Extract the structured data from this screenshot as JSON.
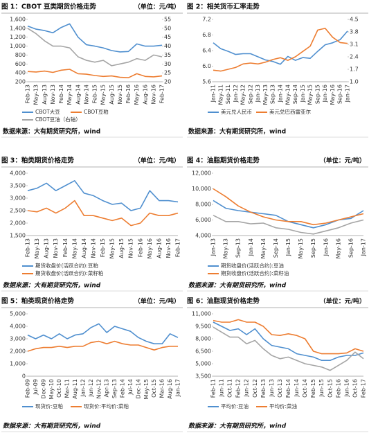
{
  "chart_data": [
    {
      "type": "line",
      "title": "图 1：CBOT 豆类期货价格走势",
      "unit": "（单位：元/吨）",
      "source": "数据来源：大有期货研究所，wind",
      "legend": "bottom",
      "categories": [
        "Feb-13",
        "May-13",
        "Aug-13",
        "Nov-13",
        "Feb-14",
        "May-14",
        "Aug-14",
        "Nov-14",
        "Feb-15",
        "May-15",
        "Aug-15",
        "Nov-15",
        "Feb-16",
        "May-16",
        "Aug-16",
        "Nov-16",
        "Feb-17"
      ],
      "ylim": [
        200,
        1600
      ],
      "yticks": [
        200,
        400,
        600,
        800,
        {
          "value": 1000,
          "label": "1,000"
        },
        {
          "value": 1200,
          "label": "1,200"
        },
        {
          "value": 1400,
          "label": "1,400"
        },
        {
          "value": 1600,
          "label": "1,600"
        }
      ],
      "y2lim": [
        20,
        55
      ],
      "y2ticks": [
        20,
        25,
        30,
        35,
        40,
        45,
        50,
        55
      ],
      "series": [
        {
          "name": "CBOT大豆",
          "color": "#4f8fcf",
          "values": [
            1450,
            1380,
            1350,
            1300,
            1420,
            1500,
            1200,
            1030,
            1000,
            960,
            900,
            870,
            880,
            1050,
            1000,
            1000,
            1020
          ]
        },
        {
          "name": "CBOT豆粕",
          "color": "#ed7d31",
          "values": [
            430,
            420,
            440,
            410,
            460,
            480,
            380,
            370,
            340,
            320,
            330,
            300,
            290,
            380,
            320,
            310,
            330
          ]
        },
        {
          "name": "CBOT豆油（右轴）",
          "color": "#a5a5a5",
          "axis": "y2",
          "values": [
            50,
            47,
            43,
            40,
            40,
            39,
            34,
            32,
            31,
            32,
            29,
            30,
            31,
            33,
            32,
            35,
            34
          ]
        }
      ]
    },
    {
      "type": "line",
      "title": "图 2：相关货币汇率走势",
      "source": "数据来源：大有期货研究所，wind",
      "legend": "bottom",
      "categories": [
        "Jan-11",
        "May-11",
        "Sep-11",
        "Jan-12",
        "May-12",
        "Sep-12",
        "Jan-13",
        "May-13",
        "Sep-13",
        "Jan-14",
        "May-14",
        "Sep-14",
        "Jan-15",
        "May-15",
        "Sep-15",
        "Jan-16",
        "May-16",
        "Sep-16",
        "Jan-17"
      ],
      "ylim": [
        5.6,
        7.2
      ],
      "yticks": [
        5.6,
        {
          "value": 6,
          "label": "6.0"
        },
        6.4,
        6.8,
        7.2
      ],
      "y2lim": [
        1,
        4.5
      ],
      "y2ticks": [
        {
          "value": 1,
          "label": "1.0"
        },
        1.7,
        2.4,
        3.1,
        3.8,
        4.5
      ],
      "series": [
        {
          "name": "美元兑人民币",
          "color": "#4f8fcf",
          "values": [
            6.6,
            6.45,
            6.38,
            6.3,
            6.32,
            6.32,
            6.24,
            6.16,
            6.12,
            6.05,
            6.25,
            6.15,
            6.22,
            6.2,
            6.38,
            6.55,
            6.6,
            6.68,
            6.9
          ]
        },
        {
          "name": "美元兑巴西雷亚尔",
          "color": "#ed7d31",
          "axis": "y2",
          "values": [
            1.65,
            1.6,
            1.7,
            1.8,
            2.0,
            2.05,
            2.0,
            2.1,
            2.25,
            2.35,
            2.2,
            2.4,
            2.7,
            3.0,
            3.9,
            4.0,
            3.5,
            3.2,
            3.15
          ]
        }
      ]
    },
    {
      "type": "line",
      "title": "图 3：粕类期货价格走势",
      "unit": "（单位：元/吨）",
      "source": "数据来源：大有期货研究所，wind",
      "legend": "bottom",
      "categories": [
        "Feb-13",
        "May-13",
        "Aug-13",
        "Nov-13",
        "Feb-14",
        "May-14",
        "Aug-14",
        "Nov-14",
        "Feb-15",
        "May-15",
        "Aug-15",
        "Nov-15",
        "Feb-16",
        "May-16",
        "Aug-16",
        "Nov-16",
        "Feb-17"
      ],
      "ylim": [
        1500,
        4000
      ],
      "yticks": [
        {
          "value": 1500,
          "label": "1,500"
        },
        {
          "value": 2000,
          "label": "2,000"
        },
        {
          "value": 2500,
          "label": "2,500"
        },
        {
          "value": 3000,
          "label": "3,000"
        },
        {
          "value": 3500,
          "label": "3,500"
        },
        {
          "value": 4000,
          "label": "4,000"
        }
      ],
      "series": [
        {
          "name": "期货收盘价(活跃合约):豆粕",
          "color": "#4f8fcf",
          "values": [
            3300,
            3400,
            3600,
            3300,
            3500,
            3700,
            3200,
            3100,
            2900,
            2750,
            2800,
            2500,
            2600,
            3300,
            2900,
            2900,
            2850
          ]
        },
        {
          "name": "期货收盘价(活跃合约):菜籽粕",
          "color": "#ed7d31",
          "values": [
            2500,
            2450,
            2600,
            2400,
            2600,
            2900,
            2300,
            2300,
            2200,
            2100,
            2200,
            1900,
            2000,
            2400,
            2300,
            2300,
            2400
          ]
        }
      ]
    },
    {
      "type": "line",
      "title": "图 4：油脂期货价格走势",
      "unit": "（单位：元/吨）",
      "source": "数据来源：大有期货研究所，wind",
      "legend": "bottom",
      "categories": [
        "Jan-13",
        "May-13",
        "Sep-13",
        "Jan-14",
        "May-14",
        "Sep-14",
        "Jan-15",
        "May-15",
        "Sep-15",
        "Jan-16",
        "May-16",
        "Sep-16",
        "Jan-17"
      ],
      "ylim": [
        4000,
        12000
      ],
      "yticks": [
        {
          "value": 4000,
          "label": "4,000"
        },
        {
          "value": 6000,
          "label": "6,000"
        },
        {
          "value": 8000,
          "label": "8,000"
        },
        {
          "value": 10000,
          "label": "10,000"
        },
        {
          "value": 12000,
          "label": "12,000"
        }
      ],
      "series": [
        {
          "name": "期货收盘价(活跃合约):豆油",
          "color": "#4f8fcf",
          "values": [
            8500,
            7500,
            7200,
            7000,
            6800,
            6600,
            5800,
            5400,
            5000,
            5400,
            6000,
            6200,
            7200
          ]
        },
        {
          "name": "期货收盘价(活跃合约):菜籽油",
          "color": "#ed7d31",
          "values": [
            10000,
            9000,
            7800,
            7000,
            6400,
            6000,
            5800,
            5800,
            5400,
            5600,
            6000,
            6400,
            6800
          ]
        },
        {
          "color": "#a5a5a5",
          "values": [
            6600,
            5800,
            5800,
            5500,
            5600,
            5000,
            4800,
            4400,
            4200,
            4600,
            5000,
            5600,
            6000
          ]
        }
      ]
    },
    {
      "type": "line",
      "title": "图 5：粕类现货价格走势",
      "unit": "（单位：元/吨）",
      "source": "数据来源：大有期货研究所，wind",
      "legend": "bottom",
      "categories": [
        "Feb-09",
        "Jul-09",
        "Dec-09",
        "May-10",
        "Oct-10",
        "Mar-11",
        "Aug-11",
        "Jan-12",
        "Jun-12",
        "Nov-12",
        "Apr-13",
        "Sep-13",
        "Feb-14",
        "Jul-14",
        "Dec-14",
        "May-15",
        "Oct-15",
        "Mar-16",
        "Aug-16",
        "Jan-17"
      ],
      "ylim": [
        0,
        5000
      ],
      "yticks": [
        0,
        {
          "value": 1000,
          "label": "1,000"
        },
        {
          "value": 2000,
          "label": "2,000"
        },
        {
          "value": 3000,
          "label": "3,000"
        },
        {
          "value": 4000,
          "label": "4,000"
        },
        {
          "value": 5000,
          "label": "5,000"
        }
      ],
      "series": [
        {
          "name": "现货价:豆粕",
          "color": "#4f8fcf",
          "values": [
            3300,
            3000,
            3300,
            3000,
            3400,
            3000,
            3300,
            3400,
            3900,
            4200,
            3500,
            4000,
            3800,
            3600,
            3100,
            2800,
            2600,
            2600,
            3400,
            3100
          ]
        },
        {
          "name": "现货价:平均价:菜粕",
          "color": "#ed7d31",
          "values": [
            2000,
            2200,
            2300,
            2300,
            2400,
            2300,
            2400,
            2400,
            2700,
            2800,
            2600,
            2800,
            2600,
            2500,
            2500,
            2300,
            2100,
            2300,
            2400,
            2400
          ]
        }
      ]
    },
    {
      "type": "line",
      "title": "图 6：油脂现货价格走势",
      "unit": "（单位：元/吨）",
      "source": "数据来源：大有期货研究所，wind",
      "legend": "bottom",
      "categories": [
        "Feb-11",
        "Jun-11",
        "Oct-11",
        "Feb-12",
        "Jun-12",
        "Oct-12",
        "Feb-13",
        "Jun-13",
        "Oct-13",
        "Feb-14",
        "Jun-14",
        "Oct-14",
        "Feb-15",
        "Jun-15",
        "Oct-15",
        "Feb-16",
        "Jun-16",
        "Oct-16",
        "Feb-17"
      ],
      "ylim": [
        3500,
        11000
      ],
      "yticks": [
        {
          "value": 3500,
          "label": "3,500"
        },
        {
          "value": 5000,
          "label": "5,000"
        },
        {
          "value": 6500,
          "label": "6,500"
        },
        {
          "value": 8000,
          "label": "8,000"
        },
        {
          "value": 9500,
          "label": "9,500"
        },
        {
          "value": 11000,
          "label": "11,000"
        }
      ],
      "series": [
        {
          "name": "平均价:豆油",
          "color": "#4f8fcf",
          "values": [
            10000,
            9500,
            9000,
            9200,
            8500,
            9200,
            8000,
            7200,
            7000,
            6800,
            6200,
            6000,
            5800,
            5400,
            5400,
            5800,
            6000,
            6000,
            6300
          ]
        },
        {
          "name": "平均价:菜油",
          "color": "#ed7d31",
          "values": [
            10200,
            10000,
            10000,
            10300,
            10000,
            10000,
            9500,
            8500,
            8400,
            8600,
            8400,
            8000,
            6500,
            6200,
            6200,
            6200,
            6300,
            6800,
            6500
          ]
        },
        {
          "color": "#a5a5a5",
          "values": [
            9400,
            8800,
            8200,
            8200,
            7400,
            7800,
            6800,
            6000,
            5600,
            5800,
            5400,
            5000,
            4800,
            4600,
            4200,
            4800,
            5400,
            6400,
            5600
          ]
        }
      ]
    }
  ]
}
